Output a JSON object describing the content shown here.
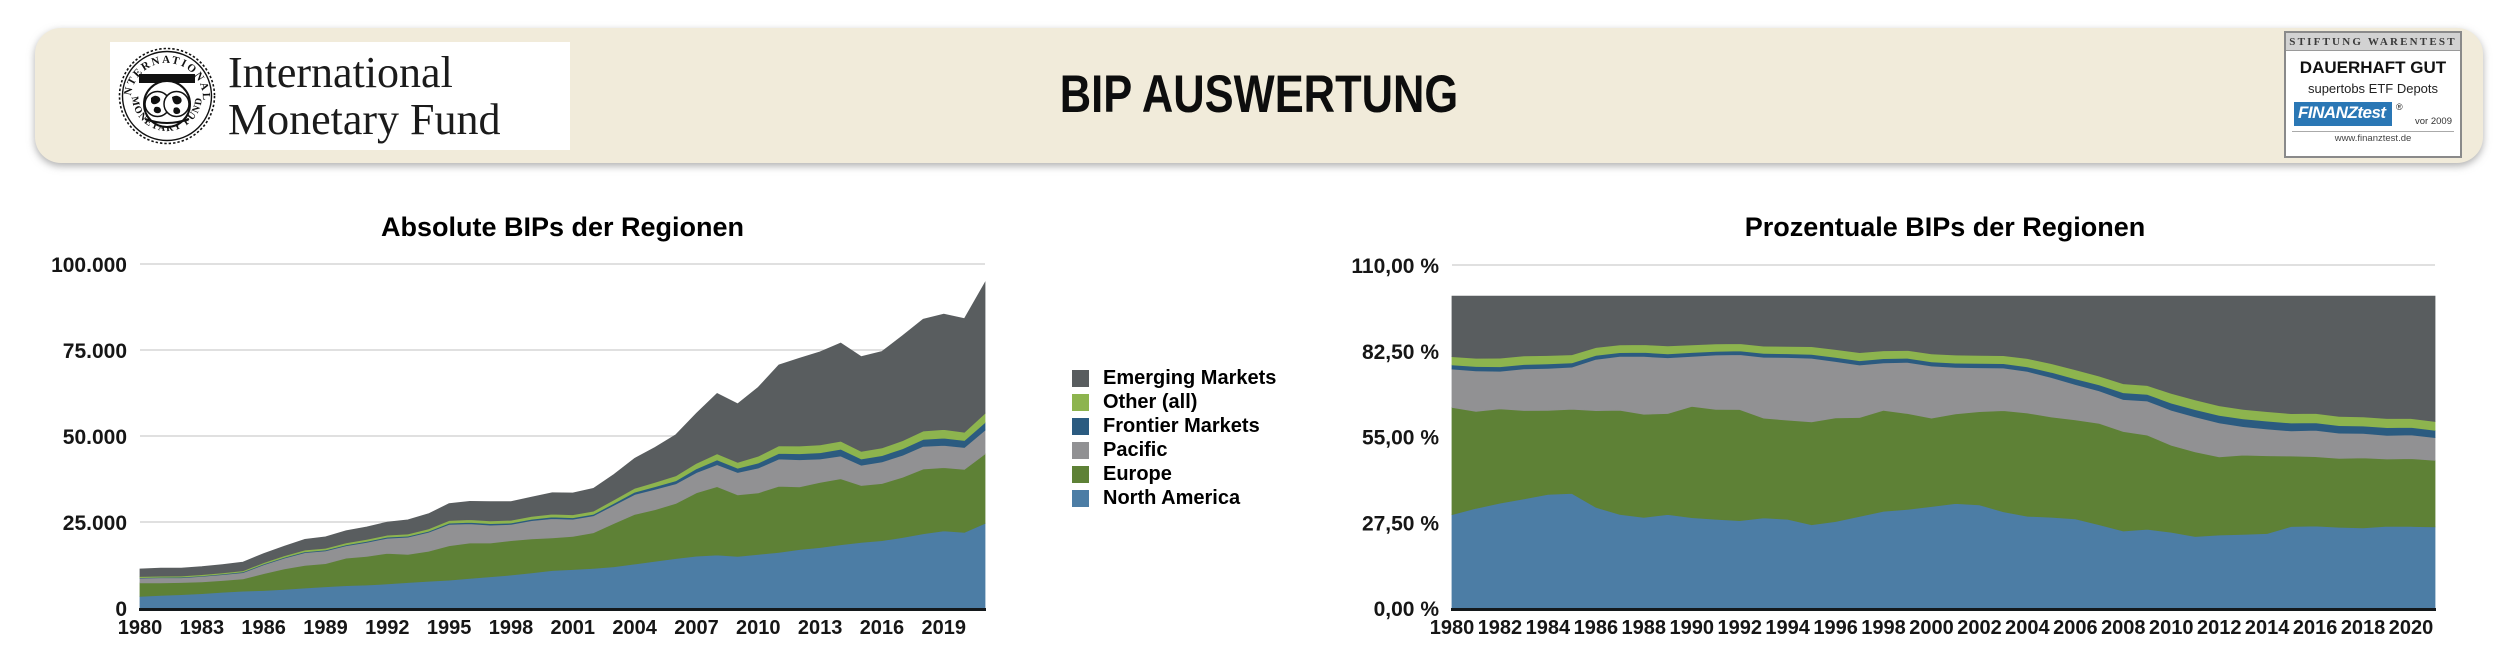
{
  "header": {
    "panel_color": "#f1ebda",
    "logo": {
      "line1": "International",
      "line2": "Monetary Fund",
      "seal_top": "INTERNATIONAL",
      "seal_bottom": "MONETARY FUND"
    },
    "title": "BIP AUSWERTUNG",
    "badge": {
      "top": "STIFTUNG WARENTEST",
      "rating": "DAUERHAFT GUT",
      "subject": "supertobs ETF Depots",
      "brand_finanz": "FINANZ",
      "brand_test": "test",
      "reg_mark": "®",
      "note": "vor 2009",
      "url": "www.finanztest.de"
    }
  },
  "legend": {
    "position": "between-charts",
    "items": [
      {
        "label": "Emerging Markets",
        "color": "#595d5f"
      },
      {
        "label": "Other (all)",
        "color": "#8db44e"
      },
      {
        "label": "Frontier Markets",
        "color": "#2b5b80"
      },
      {
        "label": "Pacific",
        "color": "#919193"
      },
      {
        "label": "Europe",
        "color": "#5e8136"
      },
      {
        "label": "North America",
        "color": "#4c7da5"
      }
    ]
  },
  "chart_data": [
    {
      "type": "area",
      "stacking": "stacked-absolute",
      "title": "Absolute BIPs der Regionen",
      "xlabel": "",
      "ylabel": "",
      "grid": "horizontal",
      "ylim": [
        0,
        100000
      ],
      "y_tick_values": [
        0,
        25000,
        50000,
        75000,
        100000
      ],
      "y_tick_labels": [
        "0",
        "25.000",
        "50.000",
        "75.000",
        "100.000"
      ],
      "x_tick_years": [
        1980,
        1983,
        1986,
        1989,
        1992,
        1995,
        1998,
        2001,
        2004,
        2007,
        2010,
        2013,
        2016,
        2019
      ],
      "x_tick_labels": [
        "1980",
        "1983",
        "1986",
        "1989",
        "1992",
        "1995",
        "1998",
        "2001",
        "2004",
        "2007",
        "2010",
        "2013",
        "2016",
        "2019"
      ],
      "x": [
        1980,
        1981,
        1982,
        1983,
        1984,
        1985,
        1986,
        1987,
        1988,
        1989,
        1990,
        1991,
        1992,
        1993,
        1994,
        1995,
        1996,
        1997,
        1998,
        1999,
        2000,
        2001,
        2002,
        2003,
        2004,
        2005,
        2006,
        2007,
        2008,
        2009,
        2010,
        2011,
        2012,
        2013,
        2014,
        2015,
        2016,
        2017,
        2018,
        2019,
        2020,
        2021
      ],
      "series": [
        {
          "name": "North America",
          "color": "#4c7da5",
          "values": [
            3400,
            3700,
            3900,
            4200,
            4600,
            4900,
            5100,
            5400,
            5800,
            6200,
            6500,
            6700,
            7000,
            7400,
            7800,
            8100,
            8600,
            9100,
            9600,
            10200,
            10900,
            11200,
            11500,
            12000,
            12800,
            13600,
            14400,
            15100,
            15400,
            15000,
            15600,
            16200,
            17000,
            17600,
            18400,
            19100,
            19600,
            20500,
            21600,
            22400,
            22000,
            24600
          ]
        },
        {
          "name": "Europe",
          "color": "#5e8136",
          "values": [
            3900,
            3600,
            3500,
            3400,
            3400,
            3600,
            4900,
            6000,
            6600,
            6700,
            8000,
            8300,
            8900,
            8200,
            8700,
            10000,
            10300,
            9800,
            10000,
            9900,
            9500,
            9600,
            10400,
            12600,
            14400,
            15000,
            16000,
            18400,
            19900,
            17900,
            17900,
            19200,
            18200,
            18900,
            19200,
            16500,
            16600,
            17500,
            18800,
            18400,
            18300,
            20200
          ]
        },
        {
          "name": "Pacific",
          "color": "#919193",
          "values": [
            1400,
            1500,
            1400,
            1600,
            1700,
            1800,
            2600,
            3100,
            3700,
            3700,
            3600,
            4100,
            4400,
            5000,
            5500,
            6200,
            5600,
            5200,
            4700,
            5300,
            5600,
            5000,
            4900,
            5300,
            5800,
            5900,
            5700,
            5900,
            6400,
            6500,
            7200,
            7900,
            7900,
            6800,
            6600,
            5900,
            6300,
            6400,
            6600,
            6500,
            6400,
            6900
          ]
        },
        {
          "name": "Frontier Markets",
          "color": "#2b5b80",
          "values": [
            150,
            160,
            170,
            170,
            180,
            180,
            200,
            220,
            250,
            260,
            280,
            280,
            300,
            310,
            330,
            380,
            410,
            430,
            420,
            420,
            450,
            450,
            470,
            550,
            650,
            780,
            920,
            1100,
            1350,
            1250,
            1450,
            1650,
            1750,
            1850,
            1950,
            1850,
            1800,
            1900,
            2000,
            2100,
            2000,
            2200
          ]
        },
        {
          "name": "Other (all)",
          "color": "#8db44e",
          "values": [
            300,
            310,
            320,
            330,
            340,
            350,
            400,
            450,
            500,
            520,
            550,
            560,
            580,
            600,
            650,
            750,
            780,
            800,
            790,
            810,
            850,
            870,
            900,
            1000,
            1150,
            1300,
            1450,
            1600,
            1800,
            1700,
            2000,
            2200,
            2250,
            2300,
            2350,
            2200,
            2250,
            2350,
            2450,
            2500,
            2400,
            2700
          ]
        },
        {
          "name": "Emerging Markets",
          "color": "#595d5f",
          "values": [
            2200,
            2300,
            2300,
            2300,
            2400,
            2500,
            2600,
            2800,
            3100,
            3300,
            3500,
            3600,
            3800,
            4100,
            4400,
            4900,
            5300,
            5600,
            5400,
            5600,
            6200,
            6300,
            6600,
            7400,
            8700,
            10100,
            11900,
            14500,
            17500,
            17000,
            20000,
            23500,
            25500,
            27000,
            28500,
            27500,
            28000,
            30500,
            32500,
            33500,
            33000,
            38000
          ]
        }
      ]
    },
    {
      "type": "area",
      "stacking": "stacked-percent",
      "title": "Prozentuale BIPs der Regionen",
      "xlabel": "",
      "ylabel": "",
      "grid": "horizontal",
      "ylim": [
        0,
        110
      ],
      "y_tick_values": [
        0,
        27.5,
        55,
        82.5,
        110
      ],
      "y_tick_labels": [
        "0,00 %",
        "27,50 %",
        "55,00 %",
        "82,50 %",
        "110,00 %"
      ],
      "x_tick_years": [
        1980,
        1982,
        1984,
        1986,
        1988,
        1990,
        1992,
        1994,
        1996,
        1998,
        2000,
        2002,
        2004,
        2006,
        2008,
        2010,
        2012,
        2014,
        2016,
        2018,
        2020
      ],
      "x_tick_labels": [
        "1980",
        "1982",
        "1984",
        "1986",
        "1988",
        "1990",
        "1992",
        "1994",
        "1996",
        "1998",
        "2000",
        "2002",
        "2004",
        "2006",
        "2008",
        "2010",
        "2012",
        "2014",
        "2016",
        "2018",
        "2020"
      ],
      "derived_from": "chart_data.0.series",
      "series_note": "each region's share (%) of the yearly total, stacked to 100 %"
    }
  ]
}
